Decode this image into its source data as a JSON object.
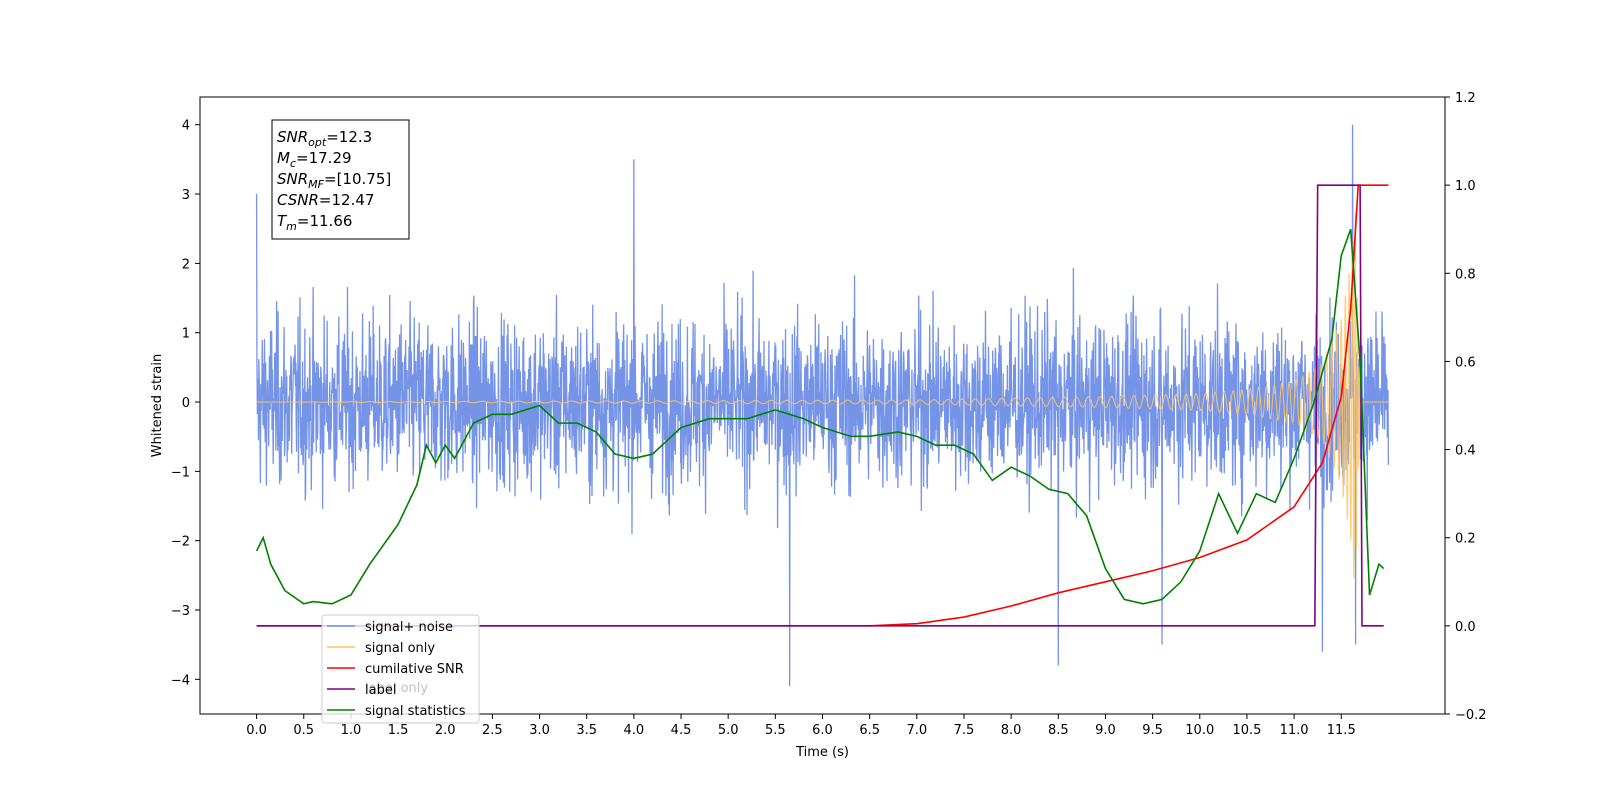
{
  "chart_data": {
    "type": "line",
    "title": "",
    "xlabel": "Time (s)",
    "ylabel": "Whitened strain",
    "xlim": [
      -0.6,
      12.6
    ],
    "ylim": [
      -4.5,
      4.4
    ],
    "y2lim": [
      -0.2,
      1.2
    ],
    "x_ticks": [
      "0.0",
      "0.5",
      "1.0",
      "1.5",
      "2.0",
      "2.5",
      "3.0",
      "3.5",
      "4.0",
      "4.5",
      "5.0",
      "5.5",
      "6.0",
      "6.5",
      "7.0",
      "7.5",
      "8.0",
      "8.5",
      "9.0",
      "9.5",
      "10.0",
      "10.5",
      "11.0",
      "11.5"
    ],
    "y_ticks": [
      "4",
      "3",
      "2",
      "1",
      "0",
      "−1",
      "−2",
      "−3",
      "−4"
    ],
    "y2_ticks": [
      "1.2",
      "1.0",
      "0.8",
      "0.6",
      "0.4",
      "0.2",
      "0.0",
      "−0.2"
    ],
    "grid": false,
    "legend": {
      "placement": "lower-left",
      "entries": [
        {
          "label": "signal+ noise",
          "color": "#6f8ee6"
        },
        {
          "label": "signal only",
          "color": "#ffc462"
        },
        {
          "label": "cumilative SNR",
          "color": "#ff0000"
        },
        {
          "label": "label",
          "color": "#800080"
        },
        {
          "label": "signal statistics",
          "color": "#008000"
        }
      ],
      "ghost_text": [
        "label only"
      ]
    },
    "annotation": {
      "lines": [
        {
          "sym": "SNR",
          "sub": "opt",
          "val": "=12.3"
        },
        {
          "sym": "M",
          "sub": "c",
          "val": "=17.29"
        },
        {
          "sym": "SNR",
          "sub": "MF",
          "val": "=[10.75]"
        },
        {
          "sym": "CSNR",
          "sub": "",
          "val": "=12.47"
        },
        {
          "sym": "T",
          "sub": "m",
          "val": "=11.66"
        }
      ]
    },
    "series": [
      {
        "name": "signal+ noise",
        "axis": "left",
        "color": "#6f8ee6",
        "x_range": [
          0.0,
          12.0
        ],
        "approx_amplitude": 1.0,
        "spikes": [
          [
            0.0,
            3.0
          ],
          [
            4.0,
            3.5
          ],
          [
            5.65,
            -4.1
          ],
          [
            8.5,
            -3.8
          ],
          [
            9.6,
            -3.5
          ],
          [
            11.3,
            -3.6
          ],
          [
            11.62,
            4.0
          ],
          [
            11.65,
            -3.5
          ]
        ]
      },
      {
        "name": "signal only",
        "axis": "left",
        "color": "#ffc462",
        "chirp_envelope": [
          [
            0.0,
            0.0
          ],
          [
            7.0,
            0.03
          ],
          [
            9.0,
            0.08
          ],
          [
            10.0,
            0.12
          ],
          [
            10.5,
            0.18
          ],
          [
            11.0,
            0.3
          ],
          [
            11.3,
            0.55
          ],
          [
            11.5,
            1.2
          ],
          [
            11.6,
            2.0
          ],
          [
            11.65,
            2.8
          ],
          [
            11.7,
            0.0
          ],
          [
            12.0,
            0.0
          ]
        ]
      },
      {
        "name": "cumilative SNR",
        "axis": "right",
        "color": "#ff0000",
        "x": [
          0.0,
          6.5,
          7.0,
          7.5,
          8.0,
          8.5,
          9.0,
          9.5,
          10.0,
          10.5,
          11.0,
          11.3,
          11.5,
          11.6,
          11.68,
          11.7,
          12.0
        ],
        "values": [
          0.0,
          0.0,
          0.005,
          0.02,
          0.045,
          0.075,
          0.1,
          0.125,
          0.155,
          0.195,
          0.27,
          0.37,
          0.52,
          0.72,
          1.0,
          1.0,
          1.0
        ]
      },
      {
        "name": "label",
        "axis": "right",
        "color": "#800080",
        "x": [
          0.0,
          11.22,
          11.25,
          11.7,
          11.72,
          11.95
        ],
        "values": [
          0.0,
          0.0,
          1.0,
          1.0,
          0.0,
          0.0
        ]
      },
      {
        "name": "signal statistics",
        "axis": "right",
        "color": "#008000",
        "x": [
          0.0,
          0.07,
          0.15,
          0.3,
          0.5,
          0.6,
          0.8,
          1.0,
          1.2,
          1.5,
          1.7,
          1.8,
          1.9,
          2.0,
          2.1,
          2.3,
          2.5,
          2.7,
          3.0,
          3.2,
          3.4,
          3.6,
          3.8,
          4.0,
          4.2,
          4.5,
          4.8,
          5.0,
          5.2,
          5.5,
          5.8,
          6.0,
          6.3,
          6.5,
          6.8,
          7.0,
          7.2,
          7.4,
          7.6,
          7.8,
          8.0,
          8.2,
          8.4,
          8.6,
          8.8,
          9.0,
          9.2,
          9.4,
          9.6,
          9.8,
          10.0,
          10.2,
          10.4,
          10.6,
          10.8,
          11.0,
          11.2,
          11.4,
          11.5,
          11.6,
          11.7,
          11.8,
          11.9,
          11.95
        ],
        "values": [
          0.17,
          0.2,
          0.14,
          0.08,
          0.05,
          0.055,
          0.05,
          0.07,
          0.14,
          0.23,
          0.32,
          0.41,
          0.37,
          0.41,
          0.38,
          0.46,
          0.48,
          0.48,
          0.5,
          0.46,
          0.46,
          0.44,
          0.39,
          0.38,
          0.39,
          0.45,
          0.47,
          0.47,
          0.47,
          0.49,
          0.47,
          0.45,
          0.43,
          0.43,
          0.44,
          0.43,
          0.41,
          0.41,
          0.39,
          0.33,
          0.36,
          0.34,
          0.31,
          0.3,
          0.25,
          0.13,
          0.06,
          0.05,
          0.06,
          0.1,
          0.17,
          0.3,
          0.21,
          0.3,
          0.28,
          0.38,
          0.5,
          0.65,
          0.84,
          0.9,
          0.6,
          0.07,
          0.14,
          0.13
        ]
      }
    ]
  }
}
